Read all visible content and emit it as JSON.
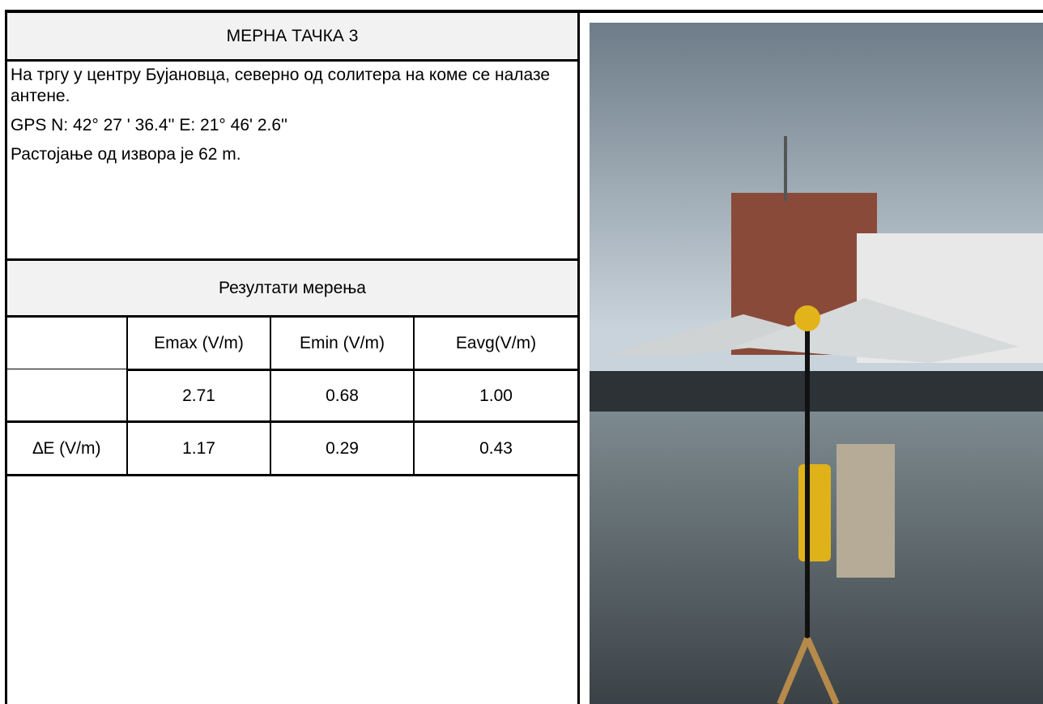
{
  "header": {
    "title": "МЕРНА ТАЧКА 3"
  },
  "description": {
    "location": "На тргу у центру Бујановца, северно од солитера на коме се налазе антене.",
    "gps": "GPS N: 42° 27 ' 36.4'' E: 21° 46' 2.6''",
    "distance": "Растојање од извора је 62 m."
  },
  "results": {
    "title": "Резултати мерења"
  },
  "table": {
    "columns": [
      "Emax (V/m)",
      "Emin (V/m)",
      "Eavg(V/m)"
    ],
    "values": [
      "2.71",
      "0.68",
      "1.00"
    ],
    "delta": {
      "label": "∆E (V/m)",
      "values": [
        "1.17",
        "0.29",
        "0.43"
      ]
    }
  }
}
